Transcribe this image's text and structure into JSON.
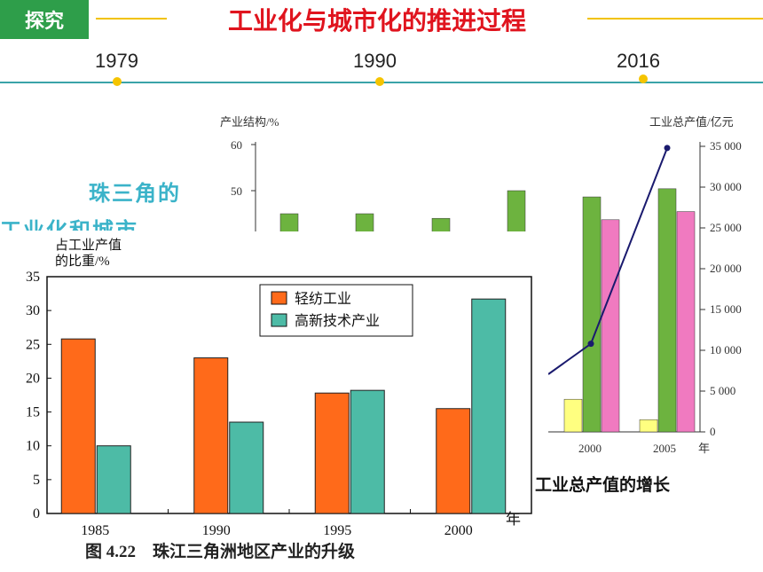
{
  "header": {
    "tag": "探究",
    "title": "工业化与城市化的推进过程"
  },
  "timeline": {
    "years": [
      "1979",
      "1990",
      "2016"
    ]
  },
  "colors": {
    "tag_bg": "#2e9e4a",
    "title": "#e0141e",
    "accent_line": "#f2c200",
    "timeline": "#3aa3a8",
    "light_industry": "#ff6a1a",
    "high_tech": "#4dbba6",
    "green_bar": "#6db33f",
    "pink_bar": "#f07ac0",
    "yellow_bar": "#ffff80",
    "line": "#1a1a6e"
  },
  "side_text": {
    "line1": "珠三角的",
    "line2": "工业化和城市",
    "caption_fragment": "工业总产值的增长"
  },
  "chart_data": [
    {
      "type": "bar",
      "note_partial": true,
      "ylabel_left": "产业结构/%",
      "ylabel_right": "工业总产值/亿元",
      "xunit": "年",
      "left_ticks": [
        "60",
        "50"
      ],
      "right_ticks": [
        "35 000",
        "30 000",
        "25 000",
        "20 000",
        "15 000",
        "10 000",
        "5 000",
        "0"
      ],
      "x_ticks": [
        "2000",
        "2005"
      ],
      "right_ylim": [
        0,
        35000
      ],
      "left_ylim": [
        0,
        60
      ],
      "top_bars": [
        45,
        45,
        44,
        50
      ],
      "categories": [
        "2000",
        "2005"
      ],
      "series": [
        {
          "values": [
            4000,
            1500
          ]
        },
        {
          "values": [
            28800,
            29800
          ]
        },
        {
          "values": [
            26000,
            27000
          ]
        }
      ],
      "line_values": [
        {
          "x": "2000",
          "y": 10800
        },
        {
          "x": "2005",
          "y": 34800
        }
      ]
    },
    {
      "type": "bar",
      "title": "图 4.22　珠江三角洲地区产业的升级",
      "ylabel": "占工业产值\n的比重/%",
      "ylabel_lines": [
        "占工业产值",
        "的比重/%"
      ],
      "xunit": "年",
      "ylim": [
        0,
        35
      ],
      "yticks": [
        "0",
        "5",
        "10",
        "15",
        "20",
        "25",
        "30",
        "35"
      ],
      "categories": [
        "1985",
        "1990",
        "1995",
        "2000"
      ],
      "series": [
        {
          "name": "轻纺工业",
          "values": [
            25.8,
            23,
            17.8,
            15.5
          ]
        },
        {
          "name": "高新技术产业",
          "values": [
            10,
            13.5,
            18.2,
            31.7
          ]
        }
      ]
    }
  ]
}
